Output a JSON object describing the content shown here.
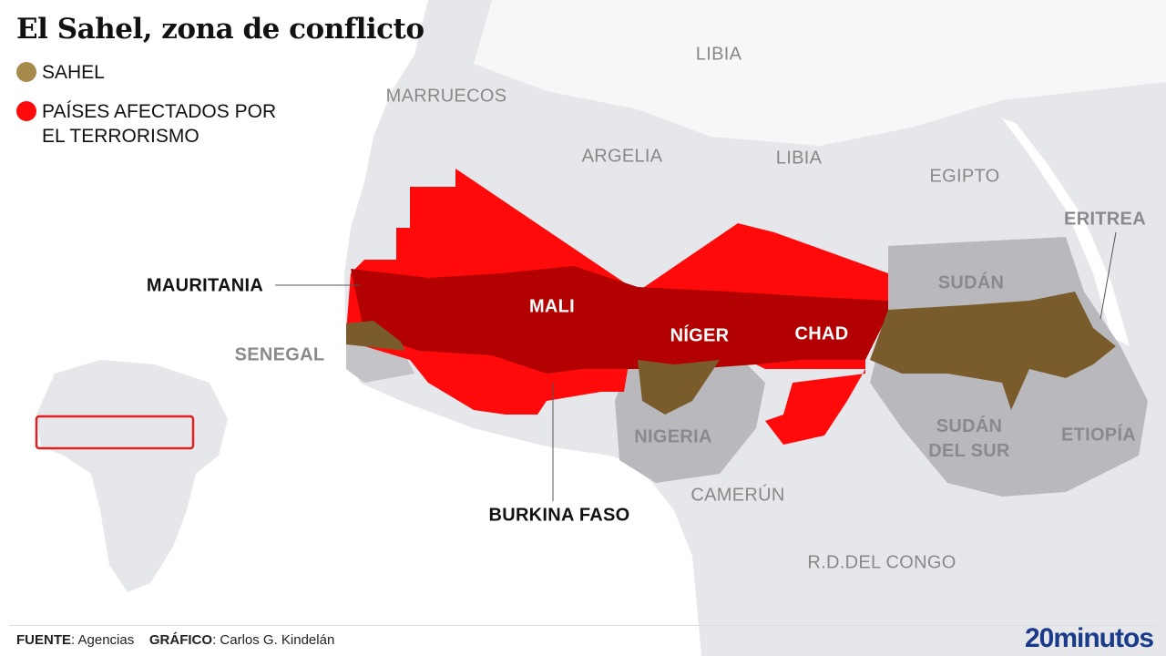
{
  "title": "El Sahel, zona de conflicto",
  "legend": [
    {
      "label": "SAHEL",
      "color": "#a68a4a"
    },
    {
      "label_line1": "PAÍSES AFECTADOS POR",
      "label_line2": "EL TERRORISMO",
      "color": "#ff0000"
    }
  ],
  "colors": {
    "affected": "#ff0a0a",
    "sahel_overlap": "#b30000",
    "sahel": "#7a5c2c",
    "land": "#e6e7ea",
    "neighbor": "#b9b9bd",
    "sea": "#ffffff",
    "inset_highlight": "#e02020"
  },
  "labels": {
    "libia_top": "LIBIA",
    "marruecos": "MARRUECOS",
    "argelia": "ARGELIA",
    "libia": "LIBIA",
    "egipto": "EGIPTO",
    "eritrea": "ERITREA",
    "sudan": "SUDÁN",
    "mauritania": "MAURITANIA",
    "mali": "MALI",
    "niger": "NÍGER",
    "chad": "CHAD",
    "senegal": "SENEGAL",
    "nigeria": "NIGERIA",
    "sudan_sur_1": "SUDÁN",
    "sudan_sur_2": "DEL SUR",
    "etiopia": "ETIOPÍA",
    "camerun": "CAMERÚN",
    "burkina": "BURKINA FASO",
    "rdcongo": "R.D.DEL CONGO"
  },
  "footer": {
    "source_label": "FUENTE",
    "source": ": Agencias",
    "credit_label": "GRÁFICO",
    "credit": ": Carlos G. Kindelán"
  },
  "logo": "20minutos"
}
